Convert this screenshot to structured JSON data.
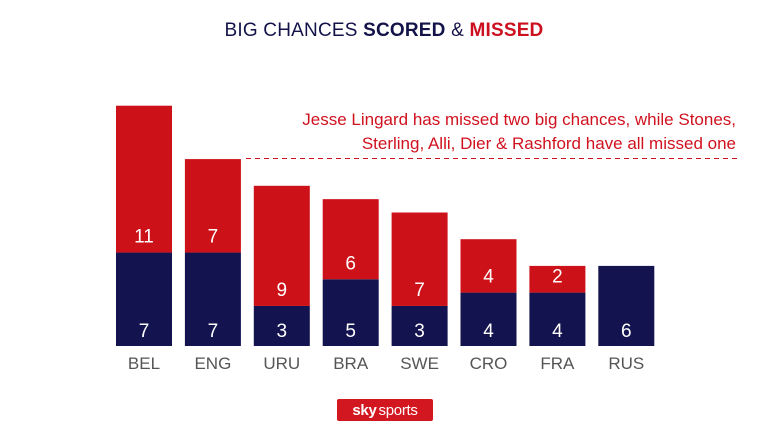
{
  "chart_data": {
    "type": "bar",
    "stacked": true,
    "title_parts": [
      "BIG CHANCES ",
      "SCORED",
      " & ",
      "MISSED"
    ],
    "categories": [
      "BEL",
      "ENG",
      "URU",
      "BRA",
      "SWE",
      "CRO",
      "FRA",
      "RUS"
    ],
    "series": [
      {
        "name": "SCORED",
        "values": [
          7,
          7,
          3,
          5,
          3,
          4,
          4,
          6
        ],
        "color": "#13134f"
      },
      {
        "name": "MISSED",
        "values": [
          11,
          7,
          9,
          6,
          7,
          4,
          2,
          0
        ],
        "color": "#cc1118"
      }
    ],
    "annotation": {
      "line1": "Jesse Lingard has missed two big chances, while Stones,",
      "line2": "Sterling, Alli, Dier & Rashford have all missed one"
    },
    "grid": false,
    "legend": "none"
  },
  "branding": {
    "logo_word1": "sky",
    "logo_word2": "sports"
  }
}
